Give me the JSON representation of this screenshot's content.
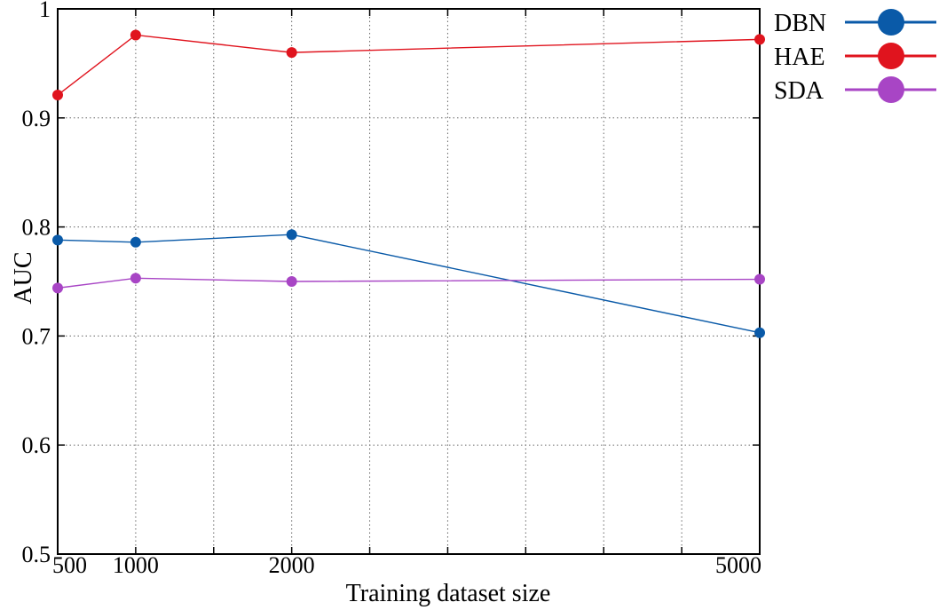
{
  "chart_data": {
    "type": "line",
    "x": [
      500,
      1000,
      2000,
      5000
    ],
    "x_tick_labels": [
      "500",
      "1000",
      "2000",
      "5000"
    ],
    "xlim": [
      500,
      5000
    ],
    "ylim": [
      0.5,
      1.0
    ],
    "y_ticks": [
      0.5,
      0.6,
      0.7,
      0.8,
      0.9,
      1.0
    ],
    "y_tick_labels": [
      "0.5",
      "0.6",
      "0.7",
      "0.8",
      "0.9",
      "1"
    ],
    "xlabel": "Training dataset size",
    "ylabel": "AUC",
    "grid": true,
    "legend_position": "top-right-outside",
    "series": [
      {
        "name": "DBN",
        "color": "#0a5aa8",
        "values": [
          0.788,
          0.786,
          0.793,
          0.703
        ]
      },
      {
        "name": "HAE",
        "color": "#e0141e",
        "values": [
          0.921,
          0.976,
          0.96,
          0.972
        ]
      },
      {
        "name": "SDA",
        "color": "#a845c5",
        "values": [
          0.744,
          0.753,
          0.75,
          0.752
        ]
      }
    ]
  }
}
